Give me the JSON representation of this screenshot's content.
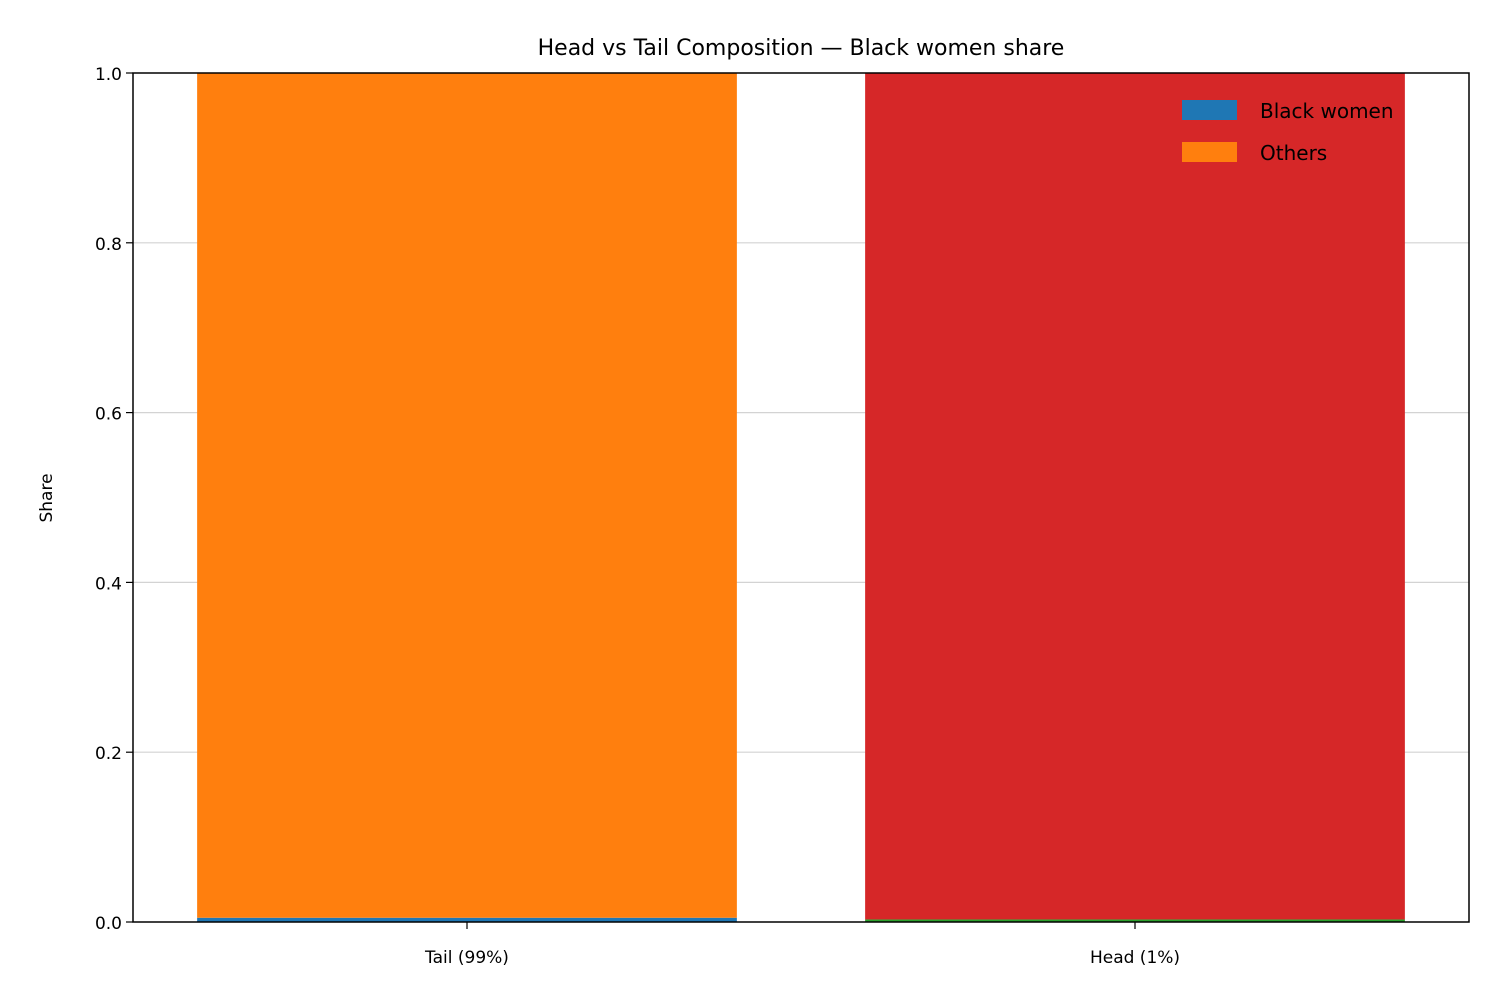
{
  "chart_data": {
    "type": "bar",
    "stacked": true,
    "title": "Head vs Tail Composition — Black women share",
    "xlabel": "",
    "ylabel": "Share",
    "ylim": [
      0,
      1
    ],
    "yticks": [
      "0.0",
      "0.2",
      "0.4",
      "0.6",
      "0.8",
      "1.0"
    ],
    "categories": [
      "Tail (99%)",
      "Head (1%)"
    ],
    "grid": {
      "y": true,
      "x": false
    },
    "legend_position": "top-right",
    "series": [
      {
        "name": "Black women",
        "colors": [
          "#1f77b4",
          "#2ca02c"
        ],
        "values": [
          0.005,
          0.003
        ]
      },
      {
        "name": "Others",
        "colors": [
          "#ff7f0e",
          "#d62728"
        ],
        "values": [
          0.995,
          0.997
        ]
      }
    ],
    "legend": [
      {
        "label": "Black women",
        "color": "#1f77b4"
      },
      {
        "label": "Others",
        "color": "#ff7f0e"
      }
    ]
  }
}
